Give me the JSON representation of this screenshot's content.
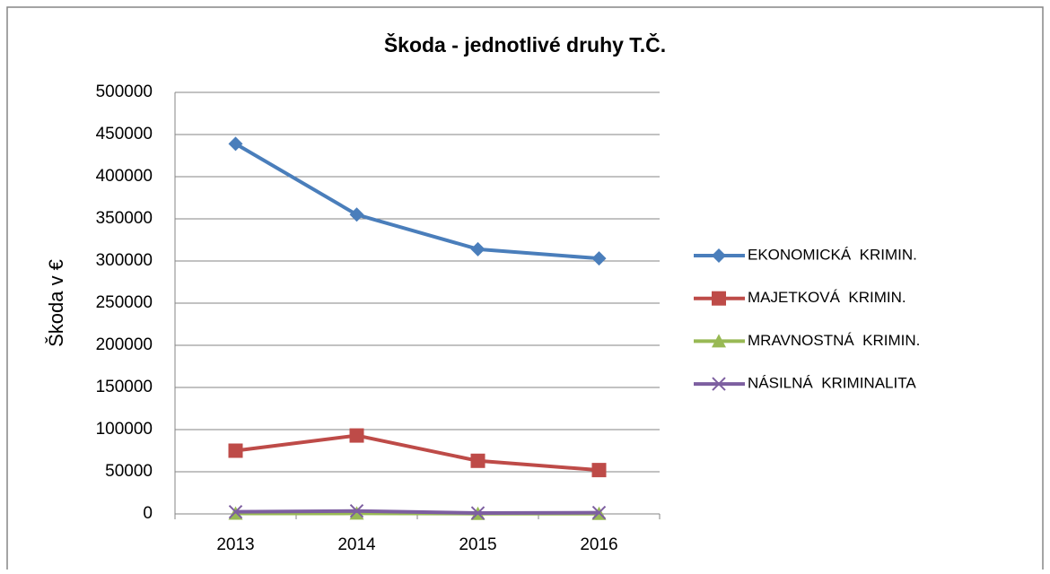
{
  "chart_data": {
    "type": "line",
    "title": "Škoda - jednotlivé druhy T.Č.",
    "y_label": "Škoda v €",
    "categories": [
      "2013",
      "2014",
      "2015",
      "2016"
    ],
    "series": [
      {
        "name": "EKONOMICKÁ  KRIMIN.",
        "color": "#4a7ebb",
        "marker": "diamond",
        "values": [
          439000,
          355000,
          314000,
          303000
        ]
      },
      {
        "name": "MAJETKOVÁ  KRIMIN.",
        "color": "#be4b48",
        "marker": "square",
        "values": [
          75000,
          93000,
          63000,
          52000
        ]
      },
      {
        "name": "MRAVNOSTNÁ  KRIMIN.",
        "color": "#98b954",
        "marker": "triangle",
        "values": [
          500,
          600,
          300,
          300
        ]
      },
      {
        "name": "NÁSILNÁ  KRIMINALITA",
        "color": "#7d5fa0",
        "marker": "x",
        "values": [
          2500,
          3500,
          1000,
          1500
        ]
      }
    ],
    "ylim": [
      0,
      500000
    ],
    "yticks": [
      0,
      50000,
      100000,
      150000,
      200000,
      250000,
      300000,
      350000,
      400000,
      450000,
      500000
    ],
    "grid": true,
    "legend": "right"
  }
}
